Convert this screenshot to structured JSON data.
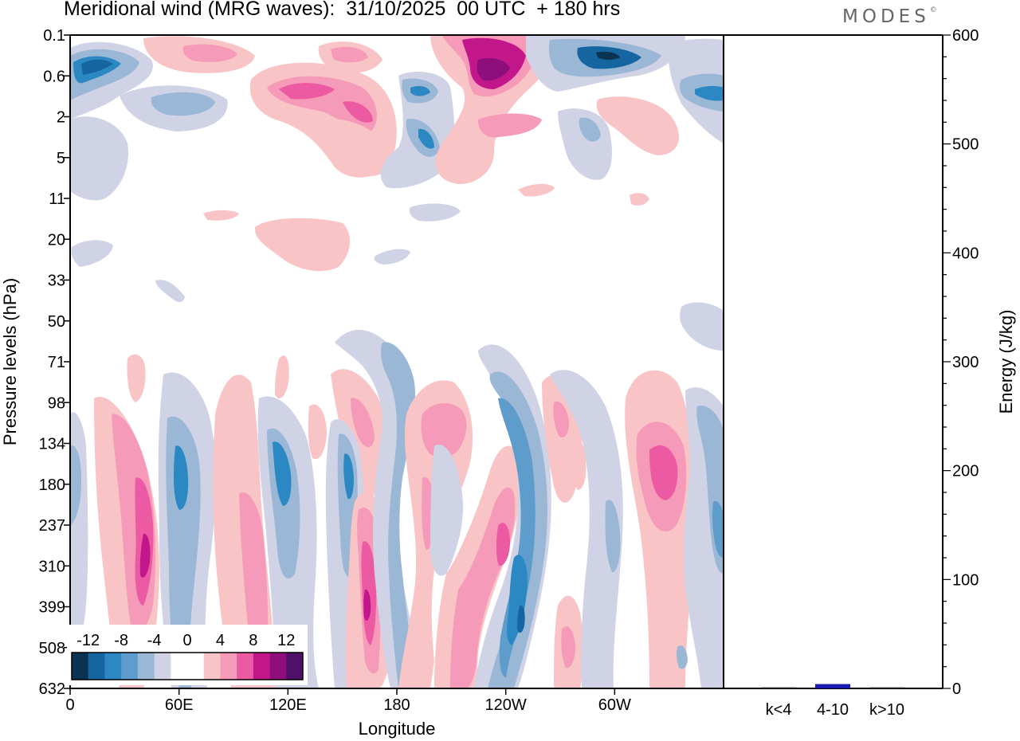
{
  "title": "Meridional wind (MRG waves):  31/10/2025  00 UTC  + 180 hrs",
  "logo": {
    "text": "MODES",
    "mark": "©"
  },
  "chart_data": [
    {
      "type": "heatmap",
      "title": "Meridional wind (MRG waves):  31/10/2025  00 UTC  + 180 hrs",
      "xlabel": "Longitude",
      "ylabel": "Pressure levels (hPa)",
      "x_ticks": [
        {
          "label": "0",
          "lon": 0
        },
        {
          "label": "60E",
          "lon": 60
        },
        {
          "label": "120E",
          "lon": 120
        },
        {
          "label": "180",
          "lon": 180
        },
        {
          "label": "120W",
          "lon": 240
        },
        {
          "label": "60W",
          "lon": 300
        }
      ],
      "xlim": [
        0,
        360
      ],
      "y_levels": [
        "0.1",
        "0.6",
        "2",
        "5",
        "11",
        "20",
        "33",
        "50",
        "71",
        "98",
        "134",
        "180",
        "237",
        "310",
        "399",
        "508",
        "632"
      ],
      "colorbar": {
        "labels": [
          "-12",
          "-8",
          "-4",
          "0",
          "4",
          "8",
          "12"
        ],
        "colors": [
          "#0d3352",
          "#1565a0",
          "#2c88c2",
          "#5e9ccb",
          "#9bb7d6",
          "#d0d2e6",
          "#ffffff",
          "#ffffff",
          "#f8c4c6",
          "#f59ab8",
          "#ec5aa3",
          "#c2178a",
          "#8e0e7c",
          "#4f0f6b"
        ]
      },
      "features": [
        {
          "level_start": "0.1",
          "level_end": "0.6",
          "lon_start": 0,
          "lon_end": 38,
          "value": -12
        },
        {
          "level_start": "0.1",
          "level_end": "0.6",
          "lon_start": 200,
          "lon_end": 240,
          "value": 12
        },
        {
          "level_start": "0.1",
          "level_end": "0.6",
          "lon_start": 275,
          "lon_end": 330,
          "value": -12
        },
        {
          "level_start": "0.6",
          "level_end": "2",
          "lon_start": 105,
          "lon_end": 175,
          "value": 8
        },
        {
          "level_start": "0.6",
          "level_end": "2",
          "lon_start": 340,
          "lon_end": 360,
          "value": -8
        },
        {
          "level_start": "0.6",
          "level_end": "5",
          "lon_start": 185,
          "lon_end": 200,
          "value": -8
        },
        {
          "level_start": "11",
          "level_end": "33",
          "lon_start": 100,
          "lon_end": 155,
          "value": 4
        },
        {
          "level_start": "98",
          "level_end": "508",
          "lon_start": 25,
          "lon_end": 50,
          "value": 8
        },
        {
          "level_start": "134",
          "level_end": "399",
          "lon_start": 55,
          "lon_end": 70,
          "value": -8
        },
        {
          "level_start": "134",
          "level_end": "310",
          "lon_start": 110,
          "lon_end": 125,
          "value": -8
        },
        {
          "level_start": "134",
          "level_end": "310",
          "lon_start": 150,
          "lon_end": 160,
          "value": -8
        },
        {
          "level_start": "237",
          "level_end": "632",
          "lon_start": 160,
          "lon_end": 175,
          "value": 12
        },
        {
          "level_start": "134",
          "level_end": "632",
          "lon_start": 230,
          "lon_end": 260,
          "value": -12
        },
        {
          "level_start": "98",
          "level_end": "310",
          "lon_start": 315,
          "lon_end": 345,
          "value": 8
        }
      ]
    },
    {
      "type": "bar",
      "categories": [
        "k<4",
        "4-10",
        "k>10"
      ],
      "values": [
        1,
        4,
        1
      ],
      "ylabel": "Energy (J/kg)",
      "ylim": [
        0,
        600
      ],
      "y_ticks": [
        "0",
        "100",
        "200",
        "300",
        "400",
        "500",
        "600"
      ]
    }
  ]
}
